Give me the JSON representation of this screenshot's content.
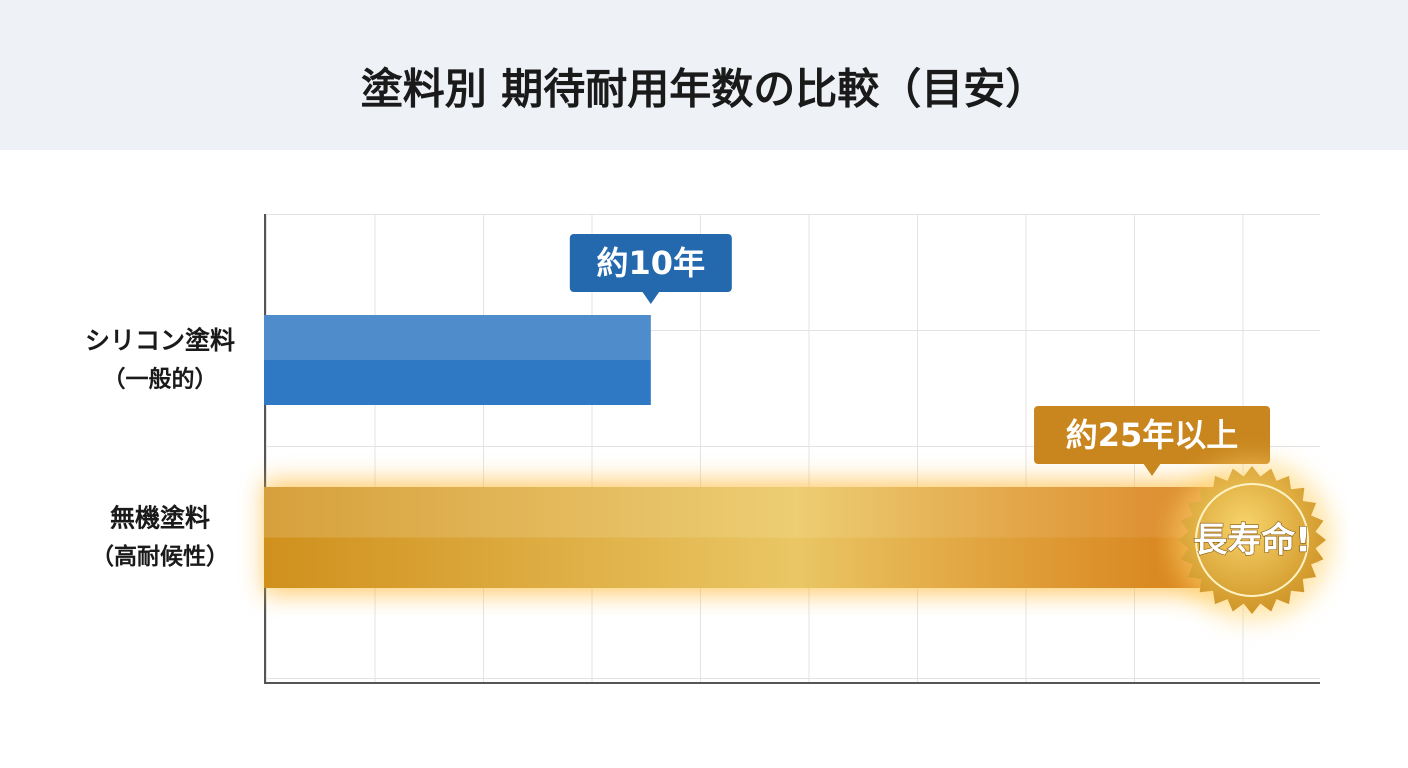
{
  "chart_data": {
    "type": "hbar",
    "title": "塗料別 期待耐用年数の比較（目安）",
    "categories": [
      "シリコン塗料",
      "無機塗料"
    ],
    "category_notes": [
      "（一般的）",
      "（高耐候性）"
    ],
    "values": [
      10,
      25
    ],
    "value_labels": [
      "約10年",
      "約25年以上"
    ],
    "colors": [
      "#2f78c4",
      "#d0901c"
    ],
    "label_colors": [
      "#2468ad",
      "#c9861f"
    ],
    "annotation": "長寿命!",
    "xlim": [
      0,
      27.3
    ]
  }
}
